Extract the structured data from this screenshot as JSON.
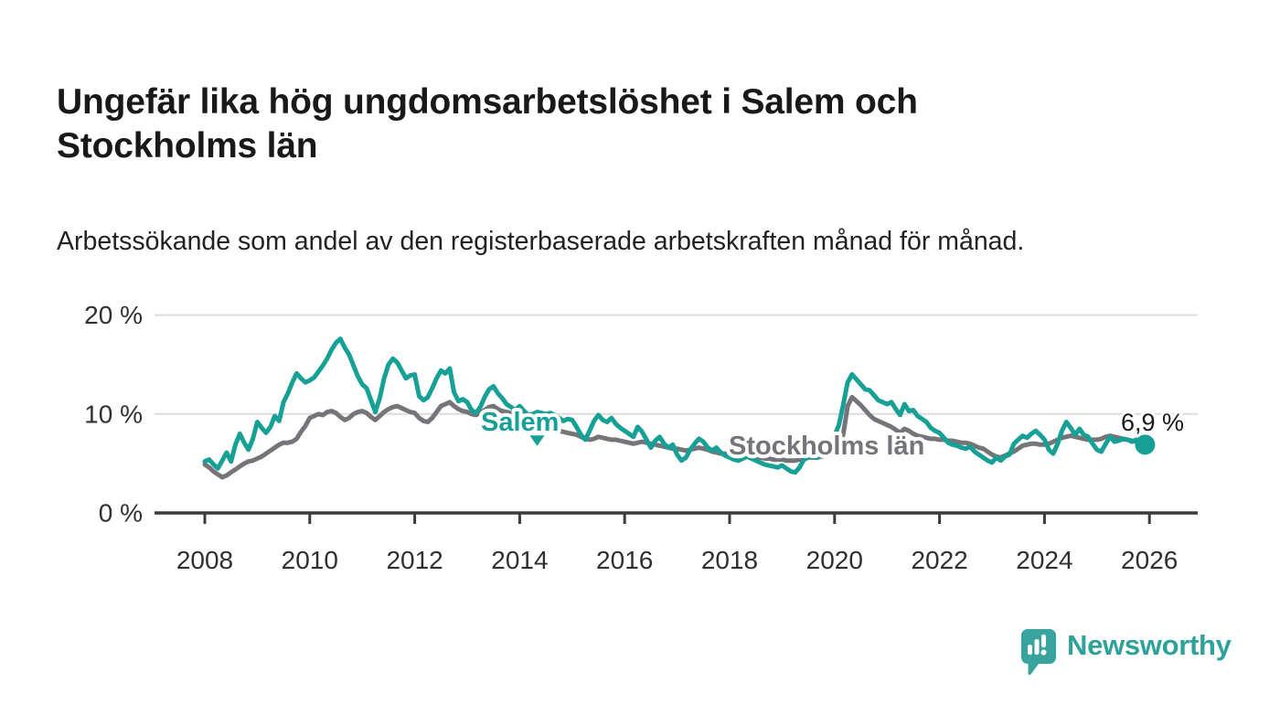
{
  "title": "Ungefär lika hög ungdomsarbetslöshet i Salem och Stockholms län",
  "subtitle": "Arbetssökande som andel av den registerbaserade arbetskraften månad för månad.",
  "footer": {
    "logo_text": "Newsworthy",
    "logo_icon": "bar-chart-speech-bubble-icon"
  },
  "colors": {
    "salem": "#17a095",
    "stockholm": "#757479",
    "grid": "#dcdcdc",
    "axis": "#3b3b3b",
    "tick_text": "#303030",
    "end_label_text": "#1a1a1a",
    "logo": "#39a49e"
  },
  "chart_data": {
    "type": "line",
    "title": "Ungefär lika hög ungdomsarbetslöshet i Salem och Stockholms län",
    "xlabel": "",
    "ylabel": "",
    "unit": "%",
    "frequency": "monthly",
    "start_year": 2008,
    "start_month": 1,
    "xlim": [
      2007.05,
      2027.0
    ],
    "ylim": [
      0,
      21.5
    ],
    "grid": "horizontal-only",
    "legend_position": "inline-labels",
    "x_ticks": [
      "2008",
      "2010",
      "2012",
      "2014",
      "2016",
      "2018",
      "2020",
      "2022",
      "2024",
      "2026"
    ],
    "y_ticks": [
      {
        "value": 0,
        "label": "0 %"
      },
      {
        "value": 10,
        "label": "10 %"
      },
      {
        "value": 20,
        "label": "20 %"
      }
    ],
    "end_label": "6,9 %",
    "end_value": 6.9,
    "series": [
      {
        "name": "Stockholms län",
        "color": "#757479",
        "values": [
          4.9,
          4.6,
          4.2,
          3.9,
          3.6,
          3.8,
          4.1,
          4.4,
          4.7,
          5.0,
          5.2,
          5.3,
          5.5,
          5.7,
          6.0,
          6.3,
          6.6,
          6.9,
          7.1,
          7.1,
          7.2,
          7.5,
          8.2,
          8.8,
          9.6,
          9.8,
          10.0,
          9.9,
          10.2,
          10.3,
          10.1,
          9.7,
          9.4,
          9.6,
          10.0,
          10.2,
          10.3,
          10.1,
          9.7,
          9.4,
          9.8,
          10.2,
          10.5,
          10.7,
          10.8,
          10.6,
          10.4,
          10.2,
          10.1,
          9.6,
          9.3,
          9.2,
          9.6,
          10.2,
          10.8,
          11.0,
          11.2,
          10.8,
          10.5,
          10.3,
          10.2,
          10.0,
          9.9,
          10.1,
          10.4,
          10.7,
          10.8,
          10.5,
          10.3,
          10.2,
          10.1,
          10.0,
          9.8,
          9.5,
          9.2,
          8.9,
          8.8,
          8.7,
          8.6,
          8.5,
          8.4,
          8.3,
          8.2,
          8.1,
          8.0,
          7.9,
          7.7,
          7.5,
          7.4,
          7.5,
          7.7,
          7.6,
          7.5,
          7.4,
          7.4,
          7.3,
          7.2,
          7.1,
          7.0,
          7.1,
          7.2,
          7.1,
          7.0,
          6.9,
          6.8,
          6.7,
          6.6,
          6.5,
          6.5,
          6.4,
          6.3,
          6.4,
          6.5,
          6.6,
          6.5,
          6.4,
          6.2,
          6.1,
          6.0,
          6.0,
          5.9,
          5.8,
          5.7,
          5.7,
          5.8,
          5.8,
          5.7,
          5.6,
          5.5,
          5.5,
          5.4,
          5.4,
          5.4,
          5.3,
          5.3,
          5.3,
          5.4,
          5.5,
          5.6,
          5.6,
          5.6,
          5.7,
          5.8,
          5.9,
          6.1,
          6.4,
          8.0,
          10.8,
          11.7,
          11.3,
          10.9,
          10.4,
          9.9,
          9.5,
          9.3,
          9.1,
          8.9,
          8.7,
          8.4,
          8.1,
          8.5,
          8.3,
          8.0,
          7.8,
          7.7,
          7.6,
          7.5,
          7.5,
          7.4,
          7.4,
          7.3,
          7.3,
          7.2,
          7.1,
          7.1,
          7.0,
          6.8,
          6.6,
          6.5,
          6.2,
          5.9,
          5.7,
          5.6,
          5.8,
          6.0,
          6.2,
          6.5,
          6.8,
          6.9,
          7.0,
          7.0,
          6.9,
          6.9,
          7.0,
          7.2,
          7.4,
          7.6,
          7.7,
          7.8,
          7.7,
          7.6,
          7.5,
          7.4,
          7.4,
          7.4,
          7.5,
          7.7,
          7.8,
          7.7,
          7.6,
          7.5,
          7.4,
          7.3,
          7.2,
          7.2,
          7.1
        ]
      },
      {
        "name": "Salem",
        "color": "#17a095",
        "values": [
          5.2,
          5.4,
          4.9,
          4.5,
          5.3,
          6.1,
          5.2,
          6.9,
          8.0,
          7.1,
          6.4,
          7.5,
          9.2,
          8.6,
          8.1,
          8.7,
          9.8,
          9.3,
          11.2,
          12.1,
          13.2,
          14.1,
          13.6,
          13.2,
          13.4,
          13.7,
          14.3,
          14.9,
          15.6,
          16.5,
          17.2,
          17.6,
          16.7,
          16.0,
          14.9,
          13.8,
          13.0,
          12.6,
          11.4,
          10.2,
          11.6,
          13.6,
          15.0,
          15.6,
          15.2,
          14.4,
          13.6,
          13.9,
          14.0,
          11.8,
          11.4,
          11.7,
          12.6,
          13.6,
          14.4,
          14.1,
          14.6,
          12.2,
          11.3,
          11.5,
          11.2,
          10.4,
          10.1,
          10.7,
          11.7,
          12.5,
          12.8,
          12.1,
          11.6,
          11.0,
          10.7,
          10.4,
          10.8,
          10.3,
          9.9,
          10.0,
          10.2,
          10.1,
          10.0,
          10.1,
          9.9,
          9.6,
          9.3,
          9.5,
          9.4,
          8.7,
          7.9,
          7.4,
          8.3,
          9.3,
          9.9,
          9.4,
          9.2,
          9.6,
          9.0,
          8.6,
          8.3,
          8.0,
          7.7,
          8.7,
          8.2,
          7.4,
          6.6,
          7.3,
          7.7,
          7.0,
          6.6,
          6.9,
          5.9,
          5.3,
          5.6,
          6.4,
          7.0,
          7.5,
          7.2,
          6.6,
          6.3,
          6.6,
          6.1,
          5.8,
          5.6,
          5.4,
          5.3,
          5.5,
          5.7,
          5.5,
          5.3,
          5.1,
          4.9,
          4.8,
          4.7,
          4.6,
          4.8,
          4.5,
          4.2,
          4.1,
          4.6,
          5.4,
          5.6,
          5.8,
          5.6,
          5.9,
          6.4,
          6.8,
          7.8,
          8.9,
          11.0,
          13.2,
          14.0,
          13.5,
          13.0,
          12.5,
          12.4,
          11.9,
          11.4,
          11.2,
          11.0,
          11.2,
          10.5,
          9.9,
          11.0,
          10.3,
          10.4,
          9.8,
          9.5,
          9.2,
          8.6,
          8.3,
          8.1,
          7.6,
          7.1,
          6.9,
          6.8,
          6.6,
          6.5,
          6.7,
          6.2,
          5.9,
          5.6,
          5.3,
          5.1,
          5.6,
          5.3,
          5.7,
          5.9,
          7.0,
          7.4,
          7.8,
          7.6,
          8.0,
          8.3,
          7.9,
          7.4,
          6.4,
          6.0,
          7.0,
          8.3,
          9.2,
          8.6,
          7.9,
          8.5,
          7.9,
          7.7,
          7.0,
          6.4,
          6.2,
          7.0,
          7.7,
          7.2,
          7.3,
          7.5,
          7.4,
          7.2,
          7.4,
          7.1,
          6.9
        ]
      }
    ]
  }
}
